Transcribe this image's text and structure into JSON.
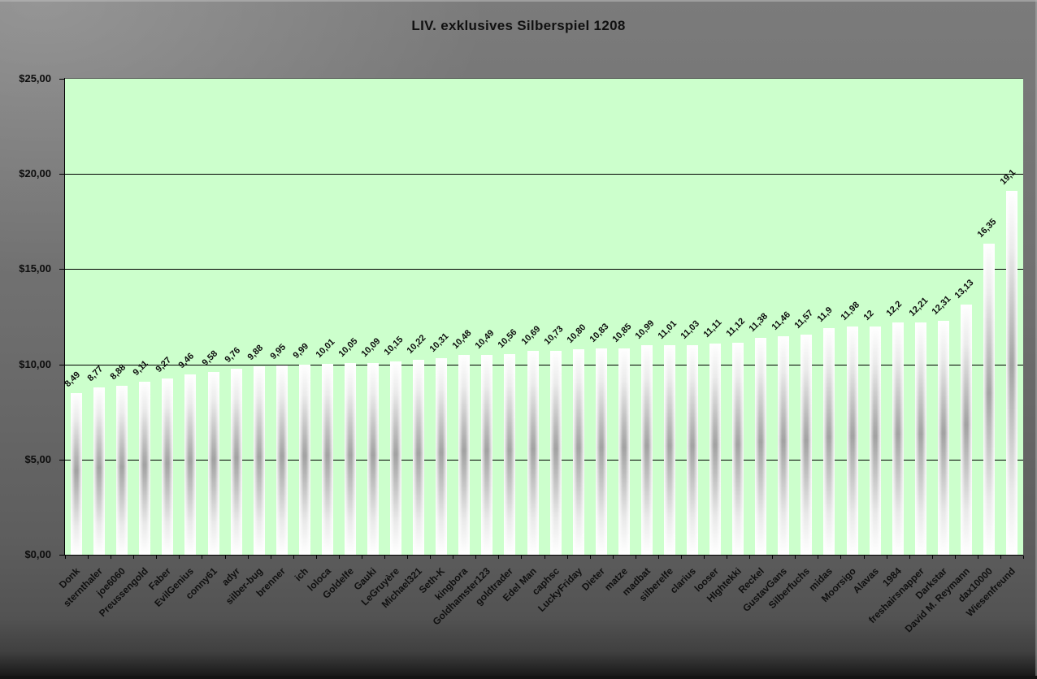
{
  "chart_data": {
    "type": "bar",
    "title": "LIV. exklusives Silberspiel 1208",
    "categories": [
      "Donk",
      "sternthaler",
      "joe6060",
      "Preussengold",
      "Faber",
      "EvilGenius",
      "conny61",
      "adyr",
      "silber-bug",
      "brenner",
      "ich",
      "loloca",
      "Goldelfe",
      "Gauki",
      "LeGruyère",
      "Michael321",
      "Seth-K",
      "kingbora",
      "Goldhamster123",
      "goldtrader",
      "Edel Man",
      "caphsc",
      "LuckyFriday",
      "Dieter",
      "matze",
      "madbat",
      "silberelfe",
      "clarius",
      "looser",
      "HIghtekki",
      "Reckel",
      "GustavGans",
      "Silberfuchs",
      "midas",
      "Moorsigo",
      "Alavas",
      "1984",
      "freshairsnapper",
      "Darkstar",
      "David M. Reymann",
      "dax10000",
      "Wiesenfreund"
    ],
    "values": [
      8.49,
      8.77,
      8.88,
      9.11,
      9.27,
      9.46,
      9.58,
      9.76,
      9.88,
      9.95,
      9.99,
      10.01,
      10.05,
      10.09,
      10.15,
      10.22,
      10.31,
      10.48,
      10.49,
      10.56,
      10.69,
      10.73,
      10.8,
      10.83,
      10.85,
      10.99,
      11.01,
      11.03,
      11.11,
      11.12,
      11.38,
      11.46,
      11.57,
      11.9,
      11.98,
      12,
      12.2,
      12.21,
      12.31,
      13.13,
      16.35,
      19.1
    ],
    "value_labels": [
      "8,49",
      "8,77",
      "8,88",
      "9,11",
      "9,27",
      "9,46",
      "9,58",
      "9,76",
      "9,88",
      "9,95",
      "9,99",
      "10,01",
      "10,05",
      "10,09",
      "10,15",
      "10,22",
      "10,31",
      "10,48",
      "10,49",
      "10,56",
      "10,69",
      "10,73",
      "10,80",
      "10,83",
      "10,85",
      "10,99",
      "11,01",
      "11,03",
      "11,11",
      "11,12",
      "11,38",
      "11,46",
      "11,57",
      "11,9",
      "11,98",
      "12",
      "12,2",
      "12,21",
      "12,31",
      "13,13",
      "16,35",
      "19,1"
    ],
    "xlabel": "",
    "ylabel": "",
    "ylim": [
      0,
      25
    ],
    "y_ticks": [
      0,
      5,
      10,
      15,
      20,
      25
    ],
    "y_tick_labels": [
      "$0,00",
      "$5,00",
      "$10,00",
      "$15,00",
      "$20,00",
      "$25,00"
    ],
    "grid": true,
    "legend": false,
    "colors": {
      "plot_background": "#ccffcc",
      "bar_center": "#a2a2a2",
      "bar_edge": "#ffffff",
      "gridline": "#000000",
      "text": "#0d0d0d",
      "outer_background": "#6f6f6f"
    }
  }
}
